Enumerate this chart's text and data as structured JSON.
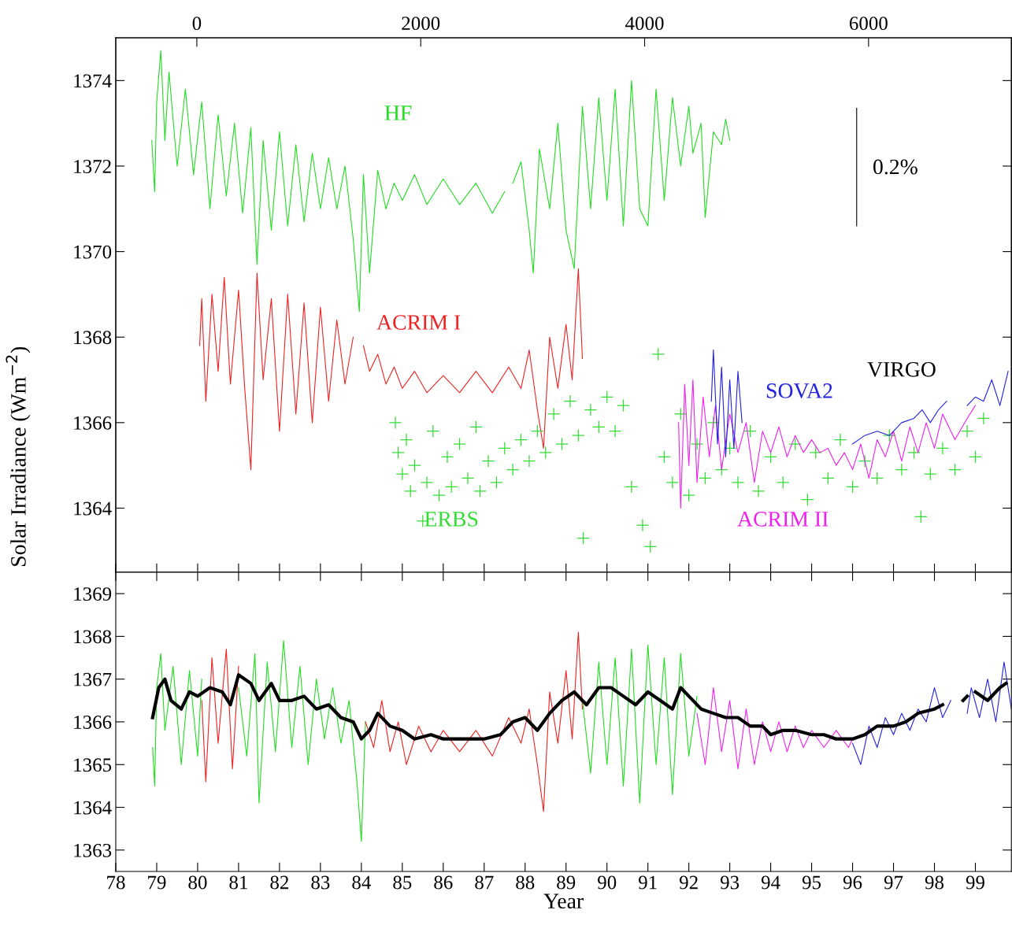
{
  "chart_data": [
    {
      "type": "line",
      "ylabel": "Solar Irradiance (Wm$^{−2}$)",
      "xlim": [
        78,
        99.88
      ],
      "xticks": [
        78,
        79,
        80,
        81,
        82,
        83,
        84,
        85,
        86,
        87,
        88,
        89,
        90,
        91,
        92,
        93,
        94,
        95,
        96,
        97,
        98,
        99
      ],
      "x2lim": [
        -724,
        7276
      ],
      "x2ticks": [
        0,
        2000,
        4000,
        6000
      ],
      "ylim": [
        1362.5,
        1375
      ],
      "yticks": [
        1364,
        1366,
        1368,
        1370,
        1372,
        1374
      ],
      "tick_labels": "y",
      "grid": false,
      "legend": false,
      "annotations": [
        "0.2%"
      ],
      "series": [
        {
          "name": "HF",
          "color": "#22dd22",
          "x": [
            78.88,
            78.95,
            79.0,
            79.1,
            79.2,
            79.3,
            79.5,
            79.7,
            79.9,
            80.1,
            80.3,
            80.5,
            80.7,
            80.9,
            81.1,
            81.3,
            81.45,
            81.6,
            81.8,
            82.0,
            82.2,
            82.4,
            82.6,
            82.8,
            83.0,
            83.2,
            83.4,
            83.6,
            83.8,
            83.95,
            84.05,
            84.2,
            84.4,
            84.6,
            84.8,
            85.0,
            85.3,
            85.6,
            86.0,
            86.4,
            86.8,
            87.2,
            87.5,
            87.6,
            87.7,
            87.9,
            88.1,
            88.2,
            88.35,
            88.6,
            88.8,
            89.0,
            89.2,
            89.4,
            89.6,
            89.8,
            90.0,
            90.2,
            90.4,
            90.6,
            90.8,
            91.0,
            91.2,
            91.4,
            91.6,
            91.8,
            92.0,
            92.1,
            92.3,
            92.4,
            92.6,
            92.8,
            92.9,
            93.0
          ],
          "values": [
            1372.6,
            1371.4,
            1373.5,
            1374.7,
            1372.6,
            1374.2,
            1372.0,
            1373.8,
            1371.8,
            1373.5,
            1371.0,
            1373.2,
            1371.3,
            1373.0,
            1370.9,
            1372.9,
            1369.7,
            1372.6,
            1370.5,
            1372.8,
            1370.6,
            1372.5,
            1370.7,
            1372.3,
            1371.0,
            1372.2,
            1371.0,
            1372.0,
            1370.3,
            1368.6,
            1371.8,
            1369.5,
            1371.9,
            1371.0,
            1371.6,
            1371.2,
            1371.8,
            1371.1,
            1371.7,
            1371.1,
            1371.6,
            1370.9,
            1371.4,
            null,
            1371.6,
            1372.1,
            1370.5,
            1369.5,
            1372.4,
            1371.0,
            1373.0,
            1370.5,
            1369.6,
            1373.4,
            1371.0,
            1373.6,
            1371.2,
            1373.8,
            1370.6,
            1374.0,
            1371.0,
            1370.6,
            1373.8,
            1371.2,
            1373.6,
            1372.0,
            1373.4,
            1372.3,
            1373.0,
            1370.8,
            1372.8,
            1372.5,
            1373.1,
            1372.6
          ]
        },
        {
          "name": "ACRIM I",
          "color": "#ee2222",
          "x": [
            80.05,
            80.1,
            80.2,
            80.35,
            80.5,
            80.65,
            80.8,
            81.0,
            81.15,
            81.3,
            81.45,
            81.6,
            81.8,
            82.0,
            82.2,
            82.4,
            82.6,
            82.8,
            83.0,
            83.2,
            83.4,
            83.6,
            83.8,
            83.9,
            84.05,
            84.2,
            84.4,
            84.6,
            84.8,
            85.0,
            85.3,
            85.6,
            86.0,
            86.4,
            86.8,
            87.2,
            87.6,
            87.9,
            88.1,
            88.3,
            88.45,
            88.6,
            88.8,
            89.0,
            89.15,
            89.3,
            89.4
          ],
          "values": [
            1367.8,
            1368.9,
            1366.5,
            1369.0,
            1367.2,
            1369.4,
            1366.9,
            1369.1,
            1366.8,
            1364.9,
            1369.5,
            1367.0,
            1368.9,
            1365.8,
            1369.0,
            1366.2,
            1368.8,
            1366.0,
            1368.7,
            1366.5,
            1368.4,
            1366.9,
            1368.0,
            null,
            1367.8,
            1367.2,
            1367.6,
            1366.9,
            1367.3,
            1366.8,
            1367.2,
            1366.7,
            1367.1,
            1366.7,
            1367.2,
            1366.7,
            1367.3,
            1366.8,
            1367.7,
            1366.3,
            1365.4,
            1368.0,
            1366.8,
            1368.3,
            1367.0,
            1369.6,
            1367.5
          ]
        },
        {
          "name": "ERBS",
          "type": "scatter",
          "marker": "cross",
          "color": "#33dd33",
          "x": [
            84.83,
            84.9,
            85.0,
            85.1,
            85.2,
            85.3,
            85.5,
            85.6,
            85.75,
            85.9,
            86.1,
            86.2,
            86.4,
            86.6,
            86.8,
            86.9,
            87.1,
            87.3,
            87.5,
            87.7,
            87.9,
            88.1,
            88.3,
            88.5,
            88.7,
            88.9,
            89.1,
            89.3,
            89.42,
            89.6,
            89.8,
            90.0,
            90.2,
            90.4,
            90.6,
            90.87,
            91.06,
            91.25,
            91.4,
            91.6,
            91.8,
            92.0,
            92.2,
            92.4,
            92.6,
            92.8,
            93.0,
            93.2,
            93.5,
            93.7,
            94.0,
            94.3,
            94.6,
            94.9,
            95.1,
            95.4,
            95.7,
            96.0,
            96.3,
            96.6,
            96.9,
            97.2,
            97.5,
            97.67,
            97.9,
            98.2,
            98.5,
            98.8,
            99.0,
            99.2
          ],
          "values": [
            1366.0,
            1365.3,
            1364.8,
            1365.6,
            1364.4,
            1365.0,
            1363.7,
            1364.6,
            1365.8,
            1364.3,
            1365.2,
            1364.5,
            1365.5,
            1364.7,
            1365.9,
            1364.4,
            1365.1,
            1364.6,
            1365.4,
            1364.9,
            1365.6,
            1365.1,
            1365.8,
            1365.3,
            1366.2,
            1365.5,
            1366.5,
            1365.7,
            1363.3,
            1366.3,
            1365.9,
            1366.6,
            1365.8,
            1366.4,
            1364.5,
            1363.6,
            1363.1,
            1367.6,
            1365.2,
            1364.6,
            1366.2,
            1364.3,
            1365.5,
            1364.7,
            1366.0,
            1364.9,
            1365.4,
            1364.6,
            1365.8,
            1364.4,
            1365.2,
            1364.6,
            1365.5,
            1364.2,
            1365.3,
            1364.7,
            1365.6,
            1364.5,
            1365.1,
            1364.7,
            1365.7,
            1364.9,
            1365.3,
            1363.8,
            1364.8,
            1365.4,
            1364.9,
            1365.8,
            1365.2,
            1366.1
          ]
        },
        {
          "name": "ACRIM II",
          "color": "#ee22ee",
          "x": [
            91.75,
            91.8,
            91.9,
            92.0,
            92.1,
            92.2,
            92.35,
            92.5,
            92.65,
            92.8,
            93.0,
            93.2,
            93.4,
            93.6,
            93.8,
            94.0,
            94.2,
            94.4,
            94.6,
            94.8,
            95.0,
            95.2,
            95.4,
            95.6,
            95.8,
            96.0,
            96.2,
            96.4,
            96.6,
            96.8,
            97.0,
            97.2,
            97.4,
            97.6,
            97.8,
            98.0,
            98.2,
            98.5,
            98.8,
            99.0
          ],
          "values": [
            1366.0,
            1364.0,
            1366.9,
            1365.0,
            1367.0,
            1364.6,
            1366.6,
            1365.2,
            1366.4,
            1364.9,
            1366.2,
            1365.3,
            1366.0,
            1364.6,
            1365.8,
            1365.3,
            1365.9,
            1365.2,
            1365.7,
            1365.3,
            1365.6,
            1365.3,
            1365.4,
            1365.0,
            1365.3,
            1364.9,
            1365.5,
            1364.7,
            1365.6,
            1365.2,
            1365.8,
            1365.1,
            1365.9,
            1365.3,
            1366.0,
            1365.4,
            1366.2,
            1365.6,
            1366.1,
            1366.4
          ]
        },
        {
          "name": "SOVA2",
          "color": "#2222dd",
          "x": [
            92.55,
            92.6,
            92.7,
            92.8,
            92.9,
            93.0,
            93.1,
            93.2,
            93.3
          ],
          "values": [
            1366.5,
            1367.7,
            1365.5,
            1367.3,
            1365.2,
            1367.0,
            1365.4,
            1367.2,
            1366.0
          ]
        },
        {
          "name": "VIRGO",
          "color": "#2222dd",
          "x": [
            96.0,
            96.3,
            96.6,
            96.9,
            97.2,
            97.5,
            97.7,
            97.9,
            98.1,
            98.3,
            98.5,
            98.8,
            99.0,
            99.2,
            99.4,
            99.6,
            99.8
          ],
          "values": [
            1365.5,
            1365.7,
            1365.8,
            1365.7,
            1366.0,
            1366.1,
            1366.3,
            1366.0,
            1366.3,
            1366.5,
            null,
            1366.4,
            1366.6,
            1366.5,
            1367.0,
            1366.4,
            1367.2
          ]
        },
        {
          "color": "#000000",
          "x": [
            96.1,
            96.1
          ],
          "values": [
            1370.6,
            1373.35
          ]
        }
      ]
    },
    {
      "type": "line",
      "xlabel": "Year",
      "xlim": [
        78,
        99.88
      ],
      "xticks": [
        78,
        79,
        80,
        81,
        82,
        83,
        84,
        85,
        86,
        87,
        88,
        89,
        90,
        91,
        92,
        93,
        94,
        95,
        96,
        97,
        98,
        99
      ],
      "ylim": [
        1362.5,
        1369.5
      ],
      "yticks": [
        1363,
        1364,
        1365,
        1366,
        1367,
        1368,
        1369
      ],
      "grid": false,
      "legend": false,
      "series": [
        {
          "color": "#22dd22",
          "x": [
            78.9,
            78.95,
            79.0,
            79.1,
            79.2,
            79.4,
            79.6,
            79.8,
            80.0,
            80.1
          ],
          "values": [
            1365.4,
            1364.5,
            1366.8,
            1367.6,
            1365.8,
            1367.3,
            1365.0,
            1367.2,
            1365.2,
            1367.0
          ]
        },
        {
          "color": "#ee2222",
          "x": [
            80.1,
            80.2,
            80.35,
            80.5,
            80.7,
            80.85,
            81.0
          ],
          "values": [
            1366.5,
            1364.6,
            1367.5,
            1365.5,
            1367.7,
            1364.9,
            1367.3
          ]
        },
        {
          "color": "#22dd22",
          "x": [
            81.0,
            81.2,
            81.4,
            81.5,
            81.7,
            81.9,
            82.1,
            82.3,
            82.5,
            82.7,
            82.9,
            83.1,
            83.3,
            83.5,
            83.7,
            83.9,
            84.0,
            84.1
          ],
          "values": [
            1366.8,
            1365.2,
            1367.6,
            1364.1,
            1367.4,
            1365.3,
            1367.9,
            1365.4,
            1367.3,
            1365.0,
            1367.0,
            1365.6,
            1366.8,
            1365.5,
            1366.5,
            1364.5,
            1363.2,
            1366.0
          ]
        },
        {
          "color": "#ee2222",
          "x": [
            84.1,
            84.3,
            84.5,
            84.7,
            84.9,
            85.1,
            85.4,
            85.7,
            86.0,
            86.4,
            86.8,
            87.2,
            87.6,
            87.9,
            88.1,
            88.3,
            88.45,
            88.6,
            88.8,
            89.0,
            89.15,
            89.3,
            89.4
          ],
          "values": [
            1366.0,
            1365.4,
            1366.5,
            1365.3,
            1366.0,
            1365.0,
            1365.9,
            1365.3,
            1365.8,
            1365.3,
            1365.8,
            1365.2,
            1366.1,
            1365.5,
            1366.3,
            1365.0,
            1363.9,
            1366.7,
            1365.5,
            1367.2,
            1365.6,
            1368.1,
            1366.3
          ]
        },
        {
          "color": "#22dd22",
          "x": [
            89.4,
            89.6,
            89.8,
            90.0,
            90.2,
            90.4,
            90.6,
            90.8,
            91.0,
            91.2,
            91.4,
            91.6,
            91.8,
            92.0,
            92.2
          ],
          "values": [
            1366.5,
            1364.8,
            1367.4,
            1365.0,
            1367.5,
            1364.5,
            1367.7,
            1364.1,
            1367.8,
            1365.0,
            1367.5,
            1364.3,
            1367.6,
            1365.2,
            1366.6
          ]
        },
        {
          "color": "#ee22ee",
          "x": [
            92.2,
            92.4,
            92.6,
            92.8,
            93.0,
            93.2,
            93.4,
            93.6,
            93.8,
            94.0,
            94.2,
            94.4,
            94.6,
            94.8,
            95.0,
            95.3,
            95.6,
            95.9,
            96.0
          ],
          "values": [
            1366.2,
            1365.0,
            1366.8,
            1365.3,
            1366.5,
            1364.9,
            1366.3,
            1365.0,
            1366.0,
            1365.3,
            1366.0,
            1365.3,
            1365.9,
            1365.4,
            1365.8,
            1365.4,
            1365.8,
            1365.4,
            1365.6
          ]
        },
        {
          "color": "#2222dd",
          "x": [
            96.0,
            96.2,
            96.4,
            96.6,
            96.8,
            97.0,
            97.2,
            97.4,
            97.6,
            97.8,
            98.0,
            98.2,
            98.4,
            98.5,
            98.8,
            98.9,
            99.1,
            99.3,
            99.5,
            99.7,
            99.88
          ],
          "values": [
            1365.5,
            1365.0,
            1365.9,
            1365.4,
            1366.1,
            1365.7,
            1366.2,
            1365.8,
            1366.3,
            1366.0,
            1366.8,
            1366.1,
            1366.5,
            null,
            1366.2,
            1366.8,
            1366.1,
            1367.0,
            1366.0,
            1367.4,
            1366.3
          ]
        },
        {
          "color": "#000000",
          "x": [
            78.9,
            79.05,
            79.2,
            79.35,
            79.6,
            79.8,
            80.0,
            80.3,
            80.6,
            80.8,
            81.0,
            81.3,
            81.5,
            81.8,
            82.0,
            82.3,
            82.6,
            82.9,
            83.2,
            83.5,
            83.8,
            84.0,
            84.2,
            84.4,
            84.7,
            85.0,
            85.3,
            85.7,
            86.0,
            86.5,
            87.0,
            87.4,
            87.7,
            88.0,
            88.3,
            88.6,
            88.9,
            89.2,
            89.5,
            89.8,
            90.1,
            90.4,
            90.7,
            91.0,
            91.3,
            91.6,
            91.8,
            92.0,
            92.3,
            92.6,
            92.9,
            93.2,
            93.5,
            93.8,
            94.0,
            94.3,
            94.6,
            95.0,
            95.3,
            95.6,
            96.0,
            96.3,
            96.6,
            97.0,
            97.3,
            97.6,
            98.0,
            98.2,
            98.4,
            98.7,
            98.8,
            98.9,
            99.0,
            99.3,
            99.6,
            99.75
          ],
          "values": [
            1366.1,
            1366.8,
            1367.0,
            1366.5,
            1366.3,
            1366.7,
            1366.6,
            1366.8,
            1366.7,
            1366.4,
            1367.1,
            1366.9,
            1366.5,
            1366.9,
            1366.5,
            1366.5,
            1366.6,
            1366.3,
            1366.4,
            1366.1,
            1366.0,
            1365.6,
            1365.8,
            1366.2,
            1365.9,
            1365.8,
            1365.6,
            1365.7,
            1365.6,
            1365.6,
            1365.6,
            1365.7,
            1366.0,
            1366.1,
            1365.8,
            1366.2,
            1366.5,
            1366.7,
            1366.4,
            1366.8,
            1366.8,
            1366.6,
            1366.4,
            1366.7,
            1366.5,
            1366.3,
            1366.8,
            1366.6,
            1366.3,
            1366.2,
            1366.1,
            1366.1,
            1365.9,
            1365.9,
            1365.7,
            1365.8,
            1365.8,
            1365.7,
            1365.7,
            1365.6,
            1365.6,
            1365.7,
            1365.9,
            1365.9,
            1366.0,
            1366.2,
            1366.3,
            1366.4,
            null,
            1366.5,
            1366.6,
            null,
            1366.7,
            1366.5,
            1366.8,
            1366.9
          ]
        }
      ]
    }
  ]
}
